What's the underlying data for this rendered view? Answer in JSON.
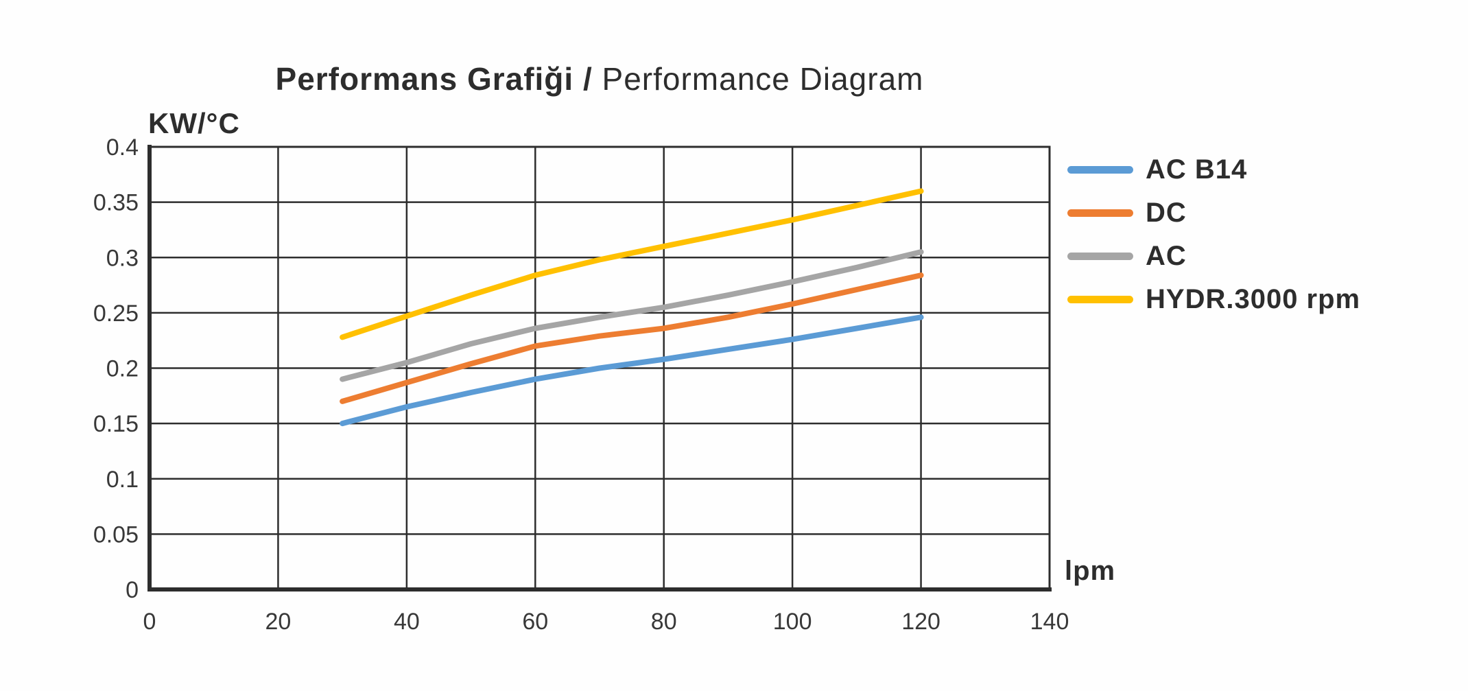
{
  "title": {
    "bold": "Performans Grafiği /",
    "regular": " Performance Diagram"
  },
  "colors": {
    "grid": "#2d2d2d",
    "axis": "#2d2d2d",
    "text": "#2d2d2d",
    "background": "#fefefe"
  },
  "chart_data": {
    "type": "line",
    "title": "Performans Grafiği / Performance Diagram",
    "xlabel": "lpm",
    "ylabel": "KW/°C",
    "xlim": [
      0,
      140
    ],
    "ylim": [
      0,
      0.4
    ],
    "x_ticks": [
      0,
      20,
      40,
      60,
      80,
      100,
      120,
      140
    ],
    "x_tick_labels": [
      "0",
      "20",
      "40",
      "60",
      "80",
      "100",
      "120",
      "140"
    ],
    "y_ticks": [
      0,
      0.05,
      0.1,
      0.15,
      0.2,
      0.25,
      0.3,
      0.35,
      0.4
    ],
    "y_tick_labels": [
      "0",
      "0.05",
      "0.1",
      "0.15",
      "0.2",
      "0.25",
      "0.3",
      "0.35",
      "0.4"
    ],
    "grid": true,
    "legend_position": "right",
    "x": [
      30,
      40,
      50,
      60,
      70,
      80,
      90,
      100,
      110,
      120
    ],
    "series": [
      {
        "name": "AC B14",
        "color": "#5B9BD5",
        "values": [
          0.15,
          0.165,
          0.178,
          0.19,
          0.2,
          0.208,
          0.217,
          0.226,
          0.236,
          0.246
        ]
      },
      {
        "name": "DC",
        "color": "#ED7D31",
        "values": [
          0.17,
          0.187,
          0.204,
          0.22,
          0.229,
          0.236,
          0.246,
          0.258,
          0.271,
          0.284
        ]
      },
      {
        "name": "AC",
        "color": "#A5A5A5",
        "values": [
          0.19,
          0.205,
          0.222,
          0.236,
          0.246,
          0.255,
          0.266,
          0.278,
          0.291,
          0.305
        ]
      },
      {
        "name": "HYDR.3000 rpm",
        "color": "#FFC000",
        "values": [
          0.228,
          0.247,
          0.266,
          0.284,
          0.298,
          0.31,
          0.322,
          0.334,
          0.347,
          0.36
        ]
      }
    ]
  }
}
